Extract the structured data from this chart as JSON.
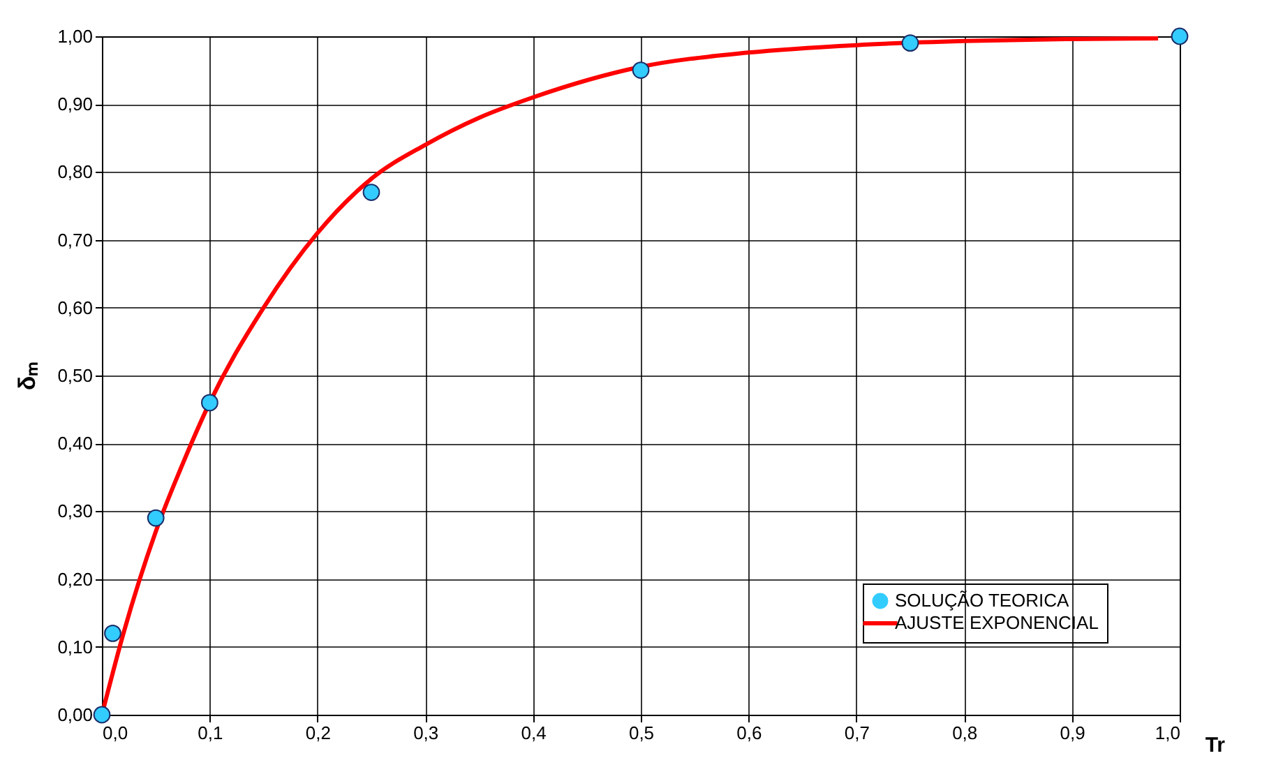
{
  "chart_data": {
    "type": "scatter",
    "xlabel": "Tr",
    "ylabel": "δₘ",
    "series": [
      {
        "name": "SOLUÇÃO TEORICA",
        "color": "#33ccff",
        "marker": "circle",
        "x": [
          0,
          0.01,
          0.05,
          0.1,
          0.25,
          0.5,
          0.75,
          1.0
        ],
        "values": [
          0,
          0.12,
          0.29,
          0.46,
          0.77,
          0.95,
          0.99,
          1.0
        ]
      },
      {
        "name": "AJUSTE EXPONENCIAL",
        "type": "line",
        "color": "#ff0000",
        "line_style": "solid",
        "x": [
          0,
          0.02,
          0.05,
          0.075,
          0.1,
          0.15,
          0.2,
          0.25,
          0.3,
          0.35,
          0.4,
          0.5,
          0.6,
          0.7,
          0.8,
          0.9,
          0.98
        ],
        "values": [
          0,
          0.12,
          0.27,
          0.37,
          0.46,
          0.6,
          0.71,
          0.79,
          0.84,
          0.88,
          0.91,
          0.955,
          0.976,
          0.987,
          0.993,
          0.996,
          0.997
        ]
      }
    ],
    "xlim": [
      0,
      1
    ],
    "ylim": [
      0,
      1
    ],
    "xticks": [
      {
        "value": 0,
        "label": "0,0"
      },
      {
        "value": 0.1,
        "label": "0,1"
      },
      {
        "value": 0.2,
        "label": "0,2"
      },
      {
        "value": 0.3,
        "label": "0,3"
      },
      {
        "value": 0.4,
        "label": "0,4"
      },
      {
        "value": 0.5,
        "label": "0,5"
      },
      {
        "value": 0.6,
        "label": "0,6"
      },
      {
        "value": 0.7,
        "label": "0,7"
      },
      {
        "value": 0.8,
        "label": "0,8"
      },
      {
        "value": 0.9,
        "label": "0,9"
      },
      {
        "value": 1,
        "label": "1,0"
      }
    ],
    "yticks": [
      {
        "value": 0,
        "label": "0,00"
      },
      {
        "value": 0.1,
        "label": "0,10"
      },
      {
        "value": 0.2,
        "label": "0,20"
      },
      {
        "value": 0.3,
        "label": "0,30"
      },
      {
        "value": 0.4,
        "label": "0,40"
      },
      {
        "value": 0.5,
        "label": "0,50"
      },
      {
        "value": 0.6,
        "label": "0,60"
      },
      {
        "value": 0.7,
        "label": "0,70"
      },
      {
        "value": 0.8,
        "label": "0,80"
      },
      {
        "value": 0.9,
        "label": "0,90"
      },
      {
        "value": 1,
        "label": "1,00"
      }
    ],
    "grid": true,
    "legend": "bottom right"
  }
}
